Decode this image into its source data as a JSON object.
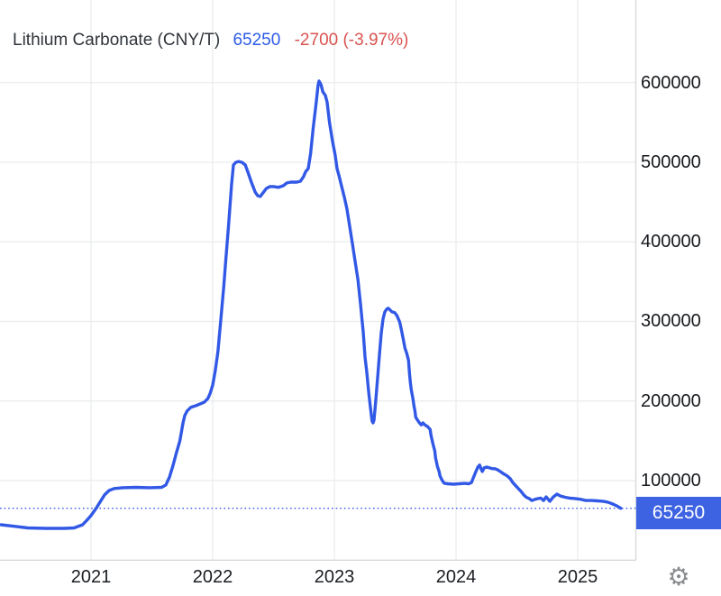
{
  "header": {
    "title": "Lithium Carbonate (CNY/T)",
    "price": "65250",
    "change": "-2700 (-3.97%)",
    "title_color": "#30353b",
    "price_color": "#2d5be9",
    "change_color": "#d9534f"
  },
  "badge": {
    "label": "65250",
    "bg": "#3d62e2",
    "text_color": "#ffffff"
  },
  "footer": {
    "gear_icon": "⚙"
  },
  "chart_data": {
    "type": "line",
    "title": "Lithium Carbonate (CNY/T)",
    "unit": "CNY/T",
    "last_price": 65250,
    "change": -2700,
    "change_pct": -3.97,
    "grid": true,
    "legend": "none",
    "x_ticks": [
      2021,
      2022,
      2023,
      2024,
      2025
    ],
    "y_ticks": [
      100000,
      200000,
      300000,
      400000,
      500000,
      600000
    ],
    "xlim": [
      2020.25,
      2025.48
    ],
    "ylim": [
      0,
      700000
    ],
    "reference_line_value": 65250,
    "colors": {
      "line": "#3259e6",
      "grid": "#e9ebed",
      "axis": "#d7dadd",
      "dotted": "#3a5be0",
      "tick_text": "#15181c"
    },
    "series": [
      {
        "name": "Lithium Carbonate",
        "points": [
          [
            2020.26,
            44500
          ],
          [
            2020.37,
            42500
          ],
          [
            2020.48,
            40500
          ],
          [
            2020.63,
            40000
          ],
          [
            2020.78,
            40000
          ],
          [
            2020.86,
            40500
          ],
          [
            2020.93,
            44500
          ],
          [
            2020.965,
            50000
          ],
          [
            2021.0,
            56000
          ],
          [
            2021.037,
            64000
          ],
          [
            2021.074,
            73000
          ],
          [
            2021.111,
            82000
          ],
          [
            2021.148,
            87500
          ],
          [
            2021.19,
            90000
          ],
          [
            2021.26,
            91000
          ],
          [
            2021.37,
            91500
          ],
          [
            2021.48,
            91000
          ],
          [
            2021.58,
            91500
          ],
          [
            2021.615,
            94500
          ],
          [
            2021.645,
            104500
          ],
          [
            2021.675,
            119500
          ],
          [
            2021.7,
            134000
          ],
          [
            2021.73,
            150000
          ],
          [
            2021.755,
            171500
          ],
          [
            2021.77,
            181500
          ],
          [
            2021.79,
            187500
          ],
          [
            2021.82,
            192000
          ],
          [
            2021.86,
            194000
          ],
          [
            2021.9,
            196500
          ],
          [
            2021.93,
            198500
          ],
          [
            2021.96,
            203000
          ],
          [
            2021.98,
            210000
          ],
          [
            2022.0,
            220000
          ],
          [
            2022.02,
            237000
          ],
          [
            2022.043,
            262000
          ],
          [
            2022.065,
            299500
          ],
          [
            2022.09,
            341500
          ],
          [
            2022.11,
            381000
          ],
          [
            2022.13,
            420500
          ],
          [
            2022.155,
            471500
          ],
          [
            2022.17,
            496500
          ],
          [
            2022.19,
            500000
          ],
          [
            2022.213,
            501000
          ],
          [
            2022.24,
            500000
          ],
          [
            2022.268,
            496500
          ],
          [
            2022.29,
            487500
          ],
          [
            2022.32,
            474000
          ],
          [
            2022.35,
            462500
          ],
          [
            2022.37,
            458000
          ],
          [
            2022.39,
            457000
          ],
          [
            2022.413,
            461500
          ],
          [
            2022.44,
            467000
          ],
          [
            2022.47,
            469500
          ],
          [
            2022.5,
            469500
          ],
          [
            2022.54,
            468500
          ],
          [
            2022.58,
            470500
          ],
          [
            2022.61,
            474000
          ],
          [
            2022.64,
            475000
          ],
          [
            2022.69,
            475000
          ],
          [
            2022.72,
            476000
          ],
          [
            2022.745,
            481500
          ],
          [
            2022.765,
            488500
          ],
          [
            2022.785,
            492000
          ],
          [
            2022.805,
            511500
          ],
          [
            2022.825,
            542000
          ],
          [
            2022.85,
            573500
          ],
          [
            2022.866,
            596500
          ],
          [
            2022.874,
            602000
          ],
          [
            2022.89,
            597500
          ],
          [
            2022.905,
            588500
          ],
          [
            2022.926,
            584000
          ],
          [
            2022.94,
            576000
          ],
          [
            2022.96,
            550000
          ],
          [
            2022.985,
            526000
          ],
          [
            2023.007,
            509000
          ],
          [
            2023.022,
            492000
          ],
          [
            2023.04,
            482000
          ],
          [
            2023.06,
            469500
          ],
          [
            2023.082,
            456000
          ],
          [
            2023.104,
            441000
          ],
          [
            2023.126,
            419500
          ],
          [
            2023.148,
            398000
          ],
          [
            2023.17,
            375500
          ],
          [
            2023.193,
            353000
          ],
          [
            2023.215,
            322000
          ],
          [
            2023.237,
            287000
          ],
          [
            2023.252,
            255500
          ],
          [
            2023.267,
            236000
          ],
          [
            2023.282,
            211000
          ],
          [
            2023.296,
            192000
          ],
          [
            2023.31,
            175000
          ],
          [
            2023.318,
            172500
          ],
          [
            2023.326,
            176000
          ],
          [
            2023.34,
            200000
          ],
          [
            2023.355,
            228000
          ],
          [
            2023.37,
            256500
          ],
          [
            2023.385,
            285000
          ],
          [
            2023.4,
            303000
          ],
          [
            2023.415,
            312000
          ],
          [
            2023.43,
            315500
          ],
          [
            2023.444,
            316500
          ],
          [
            2023.46,
            314000
          ],
          [
            2023.474,
            312000
          ],
          [
            2023.496,
            311000
          ],
          [
            2023.514,
            307500
          ],
          [
            2023.536,
            299500
          ],
          [
            2023.55,
            290500
          ],
          [
            2023.566,
            278000
          ],
          [
            2023.58,
            266500
          ],
          [
            2023.595,
            260000
          ],
          [
            2023.61,
            251000
          ],
          [
            2023.618,
            234000
          ],
          [
            2023.625,
            222500
          ],
          [
            2023.632,
            214500
          ],
          [
            2023.64,
            207500
          ],
          [
            2023.647,
            202000
          ],
          [
            2023.654,
            194000
          ],
          [
            2023.662,
            187500
          ],
          [
            2023.669,
            179500
          ],
          [
            2023.684,
            176000
          ],
          [
            2023.699,
            172500
          ],
          [
            2023.714,
            170000
          ],
          [
            2023.728,
            172500
          ],
          [
            2023.743,
            170000
          ],
          [
            2023.765,
            168000
          ],
          [
            2023.787,
            164500
          ],
          [
            2023.795,
            156500
          ],
          [
            2023.81,
            146500
          ],
          [
            2023.825,
            137500
          ],
          [
            2023.832,
            128500
          ],
          [
            2023.847,
            118000
          ],
          [
            2023.861,
            111500
          ],
          [
            2023.869,
            105500
          ],
          [
            2023.884,
            101000
          ],
          [
            2023.898,
            97500
          ],
          [
            2023.906,
            96500
          ],
          [
            2023.93,
            96000
          ],
          [
            2023.98,
            95500
          ],
          [
            2024.03,
            96000
          ],
          [
            2024.068,
            96500
          ],
          [
            2024.105,
            96000
          ],
          [
            2024.127,
            97500
          ],
          [
            2024.142,
            103500
          ],
          [
            2024.164,
            111500
          ],
          [
            2024.179,
            117000
          ],
          [
            2024.194,
            119500
          ],
          [
            2024.209,
            113500
          ],
          [
            2024.216,
            111500
          ],
          [
            2024.231,
            116000
          ],
          [
            2024.253,
            117000
          ],
          [
            2024.275,
            116000
          ],
          [
            2024.297,
            115000
          ],
          [
            2024.32,
            115000
          ],
          [
            2024.342,
            113500
          ],
          [
            2024.364,
            111500
          ],
          [
            2024.386,
            109000
          ],
          [
            2024.408,
            107000
          ],
          [
            2024.423,
            105500
          ],
          [
            2024.445,
            102500
          ],
          [
            2024.467,
            97500
          ],
          [
            2024.49,
            93500
          ],
          [
            2024.512,
            90000
          ],
          [
            2024.534,
            86500
          ],
          [
            2024.556,
            82000
          ],
          [
            2024.578,
            79000
          ],
          [
            2024.601,
            77500
          ],
          [
            2024.623,
            75000
          ],
          [
            2024.652,
            76500
          ],
          [
            2024.675,
            77500
          ],
          [
            2024.697,
            78000
          ],
          [
            2024.719,
            75000
          ],
          [
            2024.741,
            79500
          ],
          [
            2024.771,
            74000
          ],
          [
            2024.8,
            79500
          ],
          [
            2024.83,
            83000
          ],
          [
            2024.86,
            80500
          ],
          [
            2024.897,
            79000
          ],
          [
            2024.933,
            78000
          ],
          [
            2024.978,
            77500
          ],
          [
            2025.022,
            76500
          ],
          [
            2025.067,
            75000
          ],
          [
            2025.118,
            75000
          ],
          [
            2025.163,
            74500
          ],
          [
            2025.207,
            74000
          ],
          [
            2025.244,
            73000
          ],
          [
            2025.273,
            71500
          ],
          [
            2025.296,
            70000
          ],
          [
            2025.318,
            68500
          ],
          [
            2025.34,
            66500
          ],
          [
            2025.355,
            65250
          ]
        ]
      }
    ]
  }
}
